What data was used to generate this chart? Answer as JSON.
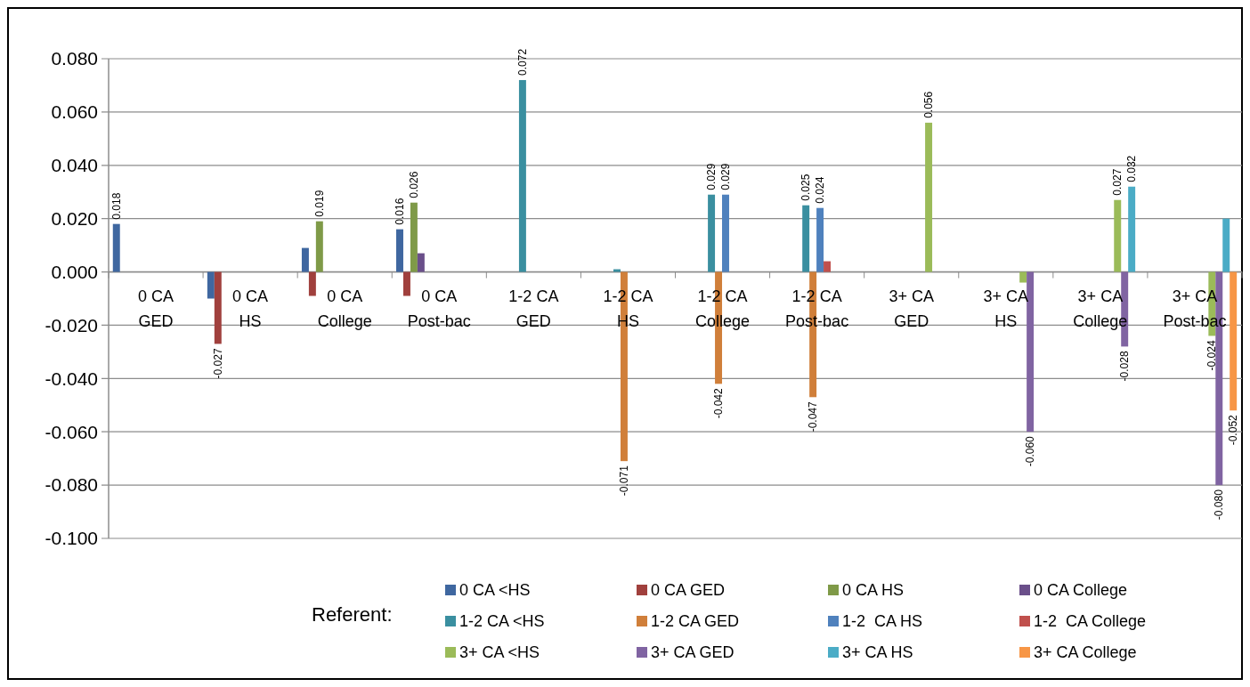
{
  "chart_data": {
    "type": "bar",
    "categories": [
      "0 CA GED",
      "0 CA HS",
      "0 CA College",
      "0 CA Post-bac",
      "1-2 CA GED",
      "1-2 CA HS",
      "1-2 CA College",
      "1-2 CA Post-bac",
      "3+ CA GED",
      "3+ CA HS",
      "3+ CA College",
      "3+ CA Post-bac"
    ],
    "legend_title": "Referent:",
    "series": [
      {
        "name": "0 CA <HS",
        "color": "#3f67a0",
        "values": [
          0.018,
          -0.01,
          0.009,
          0.016,
          null,
          null,
          null,
          null,
          null,
          null,
          null,
          null
        ],
        "value_labels": [
          "0.018",
          null,
          null,
          "0.016",
          null,
          null,
          null,
          null,
          null,
          null,
          null,
          null
        ]
      },
      {
        "name": "0 CA GED",
        "color": "#a0403d",
        "values": [
          null,
          -0.027,
          -0.009,
          -0.009,
          null,
          null,
          null,
          null,
          null,
          null,
          null,
          null
        ],
        "value_labels": [
          null,
          "-0.027",
          null,
          null,
          null,
          null,
          null,
          null,
          null,
          null,
          null,
          null
        ]
      },
      {
        "name": "0 CA HS",
        "color": "#7f9a48",
        "values": [
          null,
          null,
          0.019,
          0.026,
          null,
          null,
          null,
          null,
          null,
          null,
          null,
          null
        ],
        "value_labels": [
          null,
          null,
          "0.019",
          "0.026",
          null,
          null,
          null,
          null,
          null,
          null,
          null,
          null
        ]
      },
      {
        "name": "0 CA College",
        "color": "#6a4f8a",
        "values": [
          null,
          null,
          null,
          0.007,
          null,
          null,
          null,
          null,
          null,
          null,
          null,
          null
        ],
        "value_labels": [
          null,
          null,
          null,
          null,
          null,
          null,
          null,
          null,
          null,
          null,
          null,
          null
        ]
      },
      {
        "name": "1-2 CA <HS",
        "color": "#3a8fa0",
        "values": [
          null,
          null,
          null,
          null,
          0.072,
          0.001,
          0.029,
          0.025,
          null,
          null,
          null,
          null
        ],
        "value_labels": [
          null,
          null,
          null,
          null,
          "0.072",
          null,
          "0.029",
          "0.025",
          null,
          null,
          null,
          null
        ]
      },
      {
        "name": "1-2 CA GED",
        "color": "#d07f3a",
        "values": [
          null,
          null,
          null,
          null,
          null,
          -0.071,
          -0.042,
          -0.047,
          null,
          null,
          null,
          null
        ],
        "value_labels": [
          null,
          null,
          null,
          null,
          null,
          "-0.071",
          "-0.042",
          "-0.047",
          null,
          null,
          null,
          null
        ]
      },
      {
        "name": "1-2  CA HS",
        "color": "#4f81bd",
        "values": [
          null,
          null,
          null,
          null,
          null,
          null,
          0.029,
          0.024,
          null,
          null,
          null,
          null
        ],
        "value_labels": [
          null,
          null,
          null,
          null,
          null,
          null,
          "0.029",
          "0.024",
          null,
          null,
          null,
          null
        ]
      },
      {
        "name": "1-2  CA College",
        "color": "#c0504d",
        "values": [
          null,
          null,
          null,
          null,
          null,
          null,
          null,
          0.004,
          null,
          null,
          null,
          null
        ],
        "value_labels": [
          null,
          null,
          null,
          null,
          null,
          null,
          null,
          null,
          null,
          null,
          null,
          null
        ]
      },
      {
        "name": "3+ CA <HS",
        "color": "#9bbb59",
        "values": [
          null,
          null,
          null,
          null,
          null,
          null,
          null,
          null,
          0.056,
          -0.004,
          0.027,
          -0.024
        ],
        "value_labels": [
          null,
          null,
          null,
          null,
          null,
          null,
          null,
          null,
          "0.056",
          null,
          "0.027",
          "-0.024"
        ]
      },
      {
        "name": "3+ CA GED",
        "color": "#8064a2",
        "values": [
          null,
          null,
          null,
          null,
          null,
          null,
          null,
          null,
          null,
          -0.06,
          -0.028,
          -0.08
        ],
        "value_labels": [
          null,
          null,
          null,
          null,
          null,
          null,
          null,
          null,
          null,
          "-0.060",
          "-0.028",
          "-0.080"
        ]
      },
      {
        "name": "3+ CA HS",
        "color": "#4bacc6",
        "values": [
          null,
          null,
          null,
          null,
          null,
          null,
          null,
          null,
          null,
          null,
          0.032,
          0.02
        ],
        "value_labels": [
          null,
          null,
          null,
          null,
          null,
          null,
          null,
          null,
          null,
          null,
          "0.032",
          null
        ]
      },
      {
        "name": "3+ CA College",
        "color": "#f79646",
        "values": [
          null,
          null,
          null,
          null,
          null,
          null,
          null,
          null,
          null,
          null,
          null,
          -0.052
        ],
        "value_labels": [
          null,
          null,
          null,
          null,
          null,
          null,
          null,
          null,
          null,
          null,
          null,
          "-0.052"
        ]
      }
    ],
    "ylim": [
      -0.1,
      0.08
    ],
    "yticks": [
      {
        "value": -0.1,
        "label": "-0.100"
      },
      {
        "value": -0.08,
        "label": "-0.080"
      },
      {
        "value": -0.06,
        "label": "-0.060"
      },
      {
        "value": -0.04,
        "label": "-0.040"
      },
      {
        "value": -0.02,
        "label": "-0.020"
      },
      {
        "value": 0,
        "label": "0.000"
      },
      {
        "value": 0.02,
        "label": "0.020"
      },
      {
        "value": 0.04,
        "label": "0.040"
      },
      {
        "value": 0.06,
        "label": "0.060"
      },
      {
        "value": 0.08,
        "label": "0.080"
      }
    ],
    "grid": "y",
    "legend": "bottom"
  }
}
